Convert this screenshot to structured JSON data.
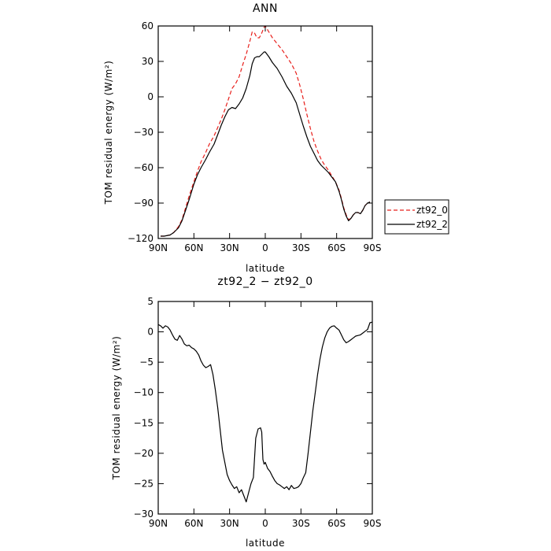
{
  "chart_data": [
    {
      "type": "line",
      "title": "ANN",
      "xlabel": "latitude",
      "ylabel": "TOM residual energy (W/m²)",
      "xlim": [
        90,
        -90
      ],
      "ylim": [
        -120,
        60
      ],
      "xticks": [
        90,
        60,
        30,
        0,
        -30,
        -60,
        -90
      ],
      "xtick_labels": [
        "90N",
        "60N",
        "30N",
        "0",
        "30S",
        "60S",
        "90S"
      ],
      "yticks": [
        60,
        30,
        0,
        -30,
        -60,
        -90,
        -120
      ],
      "ytick_labels": [
        "60",
        "30",
        "0",
        "−30",
        "−60",
        "−90",
        "−120"
      ],
      "legend_position": "right",
      "series": [
        {
          "name": "zt92_0",
          "color": "#e8201c",
          "dash": "dashed",
          "x": [
            88,
            85,
            80,
            77,
            73,
            70,
            67,
            64,
            60,
            57,
            54,
            50,
            47,
            43,
            40,
            37,
            34,
            31,
            28,
            25,
            22,
            19,
            16,
            13,
            11,
            9,
            7,
            5,
            3,
            1,
            0,
            -3,
            -6,
            -10,
            -14,
            -18,
            -22,
            -26,
            -29,
            -32,
            -35,
            -38,
            -41,
            -44,
            -47,
            -50,
            -53,
            -56,
            -59,
            -62,
            -64,
            -66,
            -68,
            -70,
            -72,
            -74,
            -76,
            -78,
            -80,
            -82,
            -84,
            -86,
            -88
          ],
          "y": [
            -118,
            -118,
            -117,
            -115,
            -110,
            -104,
            -94,
            -84,
            -72,
            -63,
            -55,
            -47,
            -40,
            -33,
            -26,
            -19,
            -11,
            -2,
            7,
            11,
            17,
            27,
            36,
            47,
            55,
            54,
            50,
            50,
            54,
            59,
            60,
            55,
            50,
            45,
            40,
            34,
            28,
            20,
            10,
            -2,
            -15,
            -27,
            -38,
            -46,
            -53,
            -58,
            -62,
            -67,
            -72,
            -79,
            -86,
            -94,
            -100,
            -104,
            -103,
            -100,
            -98,
            -98,
            -99,
            -96,
            -92,
            -90,
            -89
          ]
        },
        {
          "name": "zt92_2",
          "color": "#000000",
          "dash": "solid",
          "x": [
            88,
            85,
            80,
            77,
            73,
            70,
            67,
            64,
            60,
            57,
            54,
            50,
            47,
            43,
            40,
            37,
            34,
            31,
            28,
            25,
            22,
            19,
            16,
            13,
            11,
            9,
            7,
            5,
            3,
            1,
            0,
            -3,
            -6,
            -10,
            -14,
            -18,
            -22,
            -26,
            -29,
            -32,
            -35,
            -38,
            -41,
            -44,
            -47,
            -50,
            -53,
            -56,
            -59,
            -62,
            -64,
            -66,
            -68,
            -70,
            -72,
            -74,
            -76,
            -78,
            -80,
            -82,
            -84,
            -86,
            -88
          ],
          "y": [
            -118,
            -118,
            -117,
            -115,
            -111,
            -105,
            -96,
            -87,
            -74,
            -66,
            -60,
            -53,
            -47,
            -40,
            -32,
            -24,
            -17,
            -11,
            -9,
            -10,
            -6,
            -1,
            7,
            18,
            28,
            33,
            34,
            34,
            36,
            38,
            38,
            34,
            29,
            24,
            17,
            9,
            3,
            -5,
            -15,
            -25,
            -34,
            -42,
            -48,
            -54,
            -58,
            -61,
            -64,
            -68,
            -72,
            -80,
            -87,
            -95,
            -101,
            -105,
            -103,
            -100,
            -98,
            -98,
            -99,
            -96,
            -92,
            -90,
            -89
          ]
        }
      ]
    },
    {
      "type": "line",
      "title": "zt92_2 − zt92_0",
      "xlabel": "latitude",
      "ylabel": "TOM residual energy (W/m²)",
      "xlim": [
        90,
        -90
      ],
      "ylim": [
        -30,
        5
      ],
      "xticks": [
        90,
        60,
        30,
        0,
        -30,
        -60,
        -90
      ],
      "xtick_labels": [
        "90N",
        "60N",
        "30N",
        "0",
        "30S",
        "60S",
        "90S"
      ],
      "yticks": [
        5,
        0,
        -5,
        -10,
        -15,
        -20,
        -25,
        -30
      ],
      "ytick_labels": [
        "5",
        "0",
        "−5",
        "−10",
        "−15",
        "−20",
        "−25",
        "−30"
      ],
      "series": [
        {
          "color": "#000000",
          "dash": "solid",
          "x": [
            90,
            88,
            86,
            84,
            82,
            80,
            78,
            76,
            74,
            72,
            70,
            68,
            66,
            64,
            62,
            60,
            58,
            56,
            54,
            52,
            50,
            48,
            46,
            44,
            42,
            40,
            38,
            36,
            34,
            32,
            30,
            28,
            26,
            24,
            22,
            20,
            18,
            16,
            14,
            12,
            10,
            8,
            6,
            4,
            3,
            2,
            1,
            0,
            -1,
            -2,
            -4,
            -6,
            -8,
            -10,
            -12,
            -14,
            -16,
            -18,
            -20,
            -22,
            -24,
            -26,
            -28,
            -30,
            -32,
            -34,
            -36,
            -38,
            -40,
            -42,
            -44,
            -46,
            -48,
            -50,
            -52,
            -54,
            -56,
            -58,
            -60,
            -62,
            -64,
            -66,
            -68,
            -70,
            -72,
            -74,
            -76,
            -78,
            -80,
            -82,
            -84,
            -86,
            -88,
            -90
          ],
          "y": [
            1.2,
            1.0,
            0.6,
            1.0,
            0.8,
            0.3,
            -0.5,
            -1.2,
            -1.4,
            -0.6,
            -1.2,
            -2.0,
            -2.3,
            -2.2,
            -2.6,
            -2.8,
            -3.2,
            -3.8,
            -4.8,
            -5.5,
            -5.9,
            -5.7,
            -5.4,
            -7.0,
            -9.5,
            -12.5,
            -16.0,
            -19.5,
            -21.5,
            -23.5,
            -24.5,
            -25.2,
            -25.8,
            -25.5,
            -26.5,
            -26.0,
            -27.0,
            -28.0,
            -26.5,
            -25.0,
            -24.0,
            -17.5,
            -16.0,
            -15.8,
            -16.5,
            -21.0,
            -21.8,
            -21.5,
            -22.0,
            -22.5,
            -23.0,
            -23.8,
            -24.5,
            -25.0,
            -25.2,
            -25.5,
            -25.8,
            -25.5,
            -26.0,
            -25.3,
            -25.8,
            -25.7,
            -25.5,
            -25.0,
            -24.0,
            -23.2,
            -20.0,
            -16.5,
            -13.0,
            -10.0,
            -7.0,
            -4.5,
            -2.5,
            -1.0,
            0.0,
            0.6,
            0.9,
            1.0,
            0.6,
            0.3,
            -0.5,
            -1.3,
            -1.8,
            -1.6,
            -1.3,
            -1.0,
            -0.7,
            -0.6,
            -0.5,
            -0.2,
            0.1,
            0.4,
            1.5,
            1.6
          ]
        }
      ]
    }
  ]
}
